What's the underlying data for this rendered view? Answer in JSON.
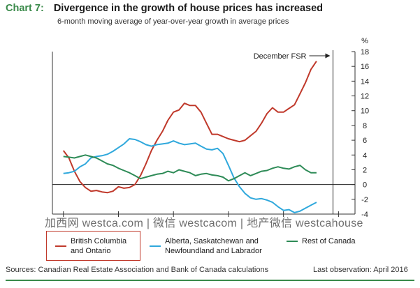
{
  "header": {
    "chart_number": "Chart 7:",
    "title": "Divergence in the growth of house prices has increased",
    "subtitle": "6-month moving average of year-over-year growth in average prices"
  },
  "colors": {
    "accent": "#3a8a4a",
    "british_columbia": "#c0392b",
    "alberta": "#2fa8dc",
    "rest_of_canada": "#2e8b57",
    "legend_border": "#c0392b"
  },
  "footer": {
    "sources": "Sources: Canadian Real Estate Association and Bank of Canada calculations",
    "last_observation": "Last observation: April 2016"
  },
  "watermark": "加西网 westca.com | 微信 westcacom | 地产微信 westcahouse",
  "chart_data": {
    "type": "line",
    "ylabel": "%",
    "ylim": [
      -4,
      18
    ],
    "yticks": [
      -4,
      -2,
      0,
      2,
      4,
      6,
      8,
      10,
      12,
      14,
      16,
      18
    ],
    "xlim": [
      2010.8,
      2016.3
    ],
    "xticks": [
      2011,
      2012,
      2013,
      2014,
      2015,
      2016
    ],
    "annotation": {
      "text": "December FSR",
      "x": 2015.9
    },
    "series": [
      {
        "name": "British Columbia and Ontario",
        "key": "bc",
        "points": [
          [
            2011.0,
            4.6
          ],
          [
            2011.1,
            3.6
          ],
          [
            2011.2,
            1.8
          ],
          [
            2011.3,
            0.4
          ],
          [
            2011.4,
            -0.4
          ],
          [
            2011.5,
            -0.9
          ],
          [
            2011.6,
            -0.8
          ],
          [
            2011.7,
            -1.0
          ],
          [
            2011.8,
            -1.1
          ],
          [
            2011.9,
            -0.9
          ],
          [
            2012.0,
            -0.3
          ],
          [
            2012.1,
            -0.5
          ],
          [
            2012.2,
            -0.4
          ],
          [
            2012.3,
            0.0
          ],
          [
            2012.4,
            1.2
          ],
          [
            2012.5,
            2.8
          ],
          [
            2012.6,
            4.6
          ],
          [
            2012.7,
            6.0
          ],
          [
            2012.8,
            7.2
          ],
          [
            2012.9,
            8.7
          ],
          [
            2013.0,
            9.8
          ],
          [
            2013.1,
            10.1
          ],
          [
            2013.2,
            11.0
          ],
          [
            2013.3,
            10.7
          ],
          [
            2013.4,
            10.7
          ],
          [
            2013.5,
            9.8
          ],
          [
            2013.6,
            8.3
          ],
          [
            2013.7,
            6.8
          ],
          [
            2013.8,
            6.8
          ],
          [
            2013.9,
            6.5
          ],
          [
            2014.0,
            6.2
          ],
          [
            2014.1,
            6.0
          ],
          [
            2014.2,
            5.8
          ],
          [
            2014.3,
            6.0
          ],
          [
            2014.4,
            6.6
          ],
          [
            2014.5,
            7.2
          ],
          [
            2014.6,
            8.3
          ],
          [
            2014.7,
            9.6
          ],
          [
            2014.8,
            10.4
          ],
          [
            2014.9,
            9.8
          ],
          [
            2015.0,
            9.8
          ],
          [
            2015.1,
            10.3
          ],
          [
            2015.2,
            10.8
          ],
          [
            2015.3,
            12.3
          ],
          [
            2015.4,
            13.8
          ],
          [
            2015.5,
            15.6
          ],
          [
            2015.6,
            16.7
          ]
        ]
      },
      {
        "name": "Alberta, Saskatchewan and Newfoundland and Labrador",
        "key": "ab",
        "points": [
          [
            2011.0,
            1.5
          ],
          [
            2011.1,
            1.6
          ],
          [
            2011.2,
            1.8
          ],
          [
            2011.3,
            2.4
          ],
          [
            2011.4,
            2.8
          ],
          [
            2011.5,
            3.6
          ],
          [
            2011.6,
            3.8
          ],
          [
            2011.7,
            3.9
          ],
          [
            2011.8,
            4.1
          ],
          [
            2011.9,
            4.5
          ],
          [
            2012.0,
            5.0
          ],
          [
            2012.1,
            5.5
          ],
          [
            2012.2,
            6.2
          ],
          [
            2012.3,
            6.1
          ],
          [
            2012.4,
            5.8
          ],
          [
            2012.5,
            5.4
          ],
          [
            2012.6,
            5.2
          ],
          [
            2012.7,
            5.4
          ],
          [
            2012.8,
            5.5
          ],
          [
            2012.9,
            5.6
          ],
          [
            2013.0,
            5.9
          ],
          [
            2013.1,
            5.6
          ],
          [
            2013.2,
            5.4
          ],
          [
            2013.3,
            5.5
          ],
          [
            2013.4,
            5.6
          ],
          [
            2013.5,
            5.2
          ],
          [
            2013.6,
            4.8
          ],
          [
            2013.7,
            4.7
          ],
          [
            2013.8,
            4.9
          ],
          [
            2013.9,
            4.2
          ],
          [
            2014.0,
            2.6
          ],
          [
            2014.1,
            0.9
          ],
          [
            2014.2,
            -0.3
          ],
          [
            2014.3,
            -1.2
          ],
          [
            2014.4,
            -1.8
          ],
          [
            2014.5,
            -2.0
          ],
          [
            2014.6,
            -1.9
          ],
          [
            2014.7,
            -2.1
          ],
          [
            2014.8,
            -2.4
          ],
          [
            2014.9,
            -3.0
          ],
          [
            2015.0,
            -3.5
          ],
          [
            2015.1,
            -3.4
          ],
          [
            2015.2,
            -3.8
          ],
          [
            2015.3,
            -3.6
          ],
          [
            2015.4,
            -3.2
          ],
          [
            2015.5,
            -2.8
          ],
          [
            2015.6,
            -2.4
          ]
        ]
      },
      {
        "name": "Rest of Canada",
        "key": "roc",
        "points": [
          [
            2011.0,
            3.8
          ],
          [
            2011.1,
            3.7
          ],
          [
            2011.2,
            3.6
          ],
          [
            2011.3,
            3.8
          ],
          [
            2011.4,
            4.0
          ],
          [
            2011.5,
            3.8
          ],
          [
            2011.6,
            3.6
          ],
          [
            2011.7,
            3.2
          ],
          [
            2011.8,
            2.8
          ],
          [
            2011.9,
            2.6
          ],
          [
            2012.0,
            2.2
          ],
          [
            2012.1,
            1.9
          ],
          [
            2012.2,
            1.6
          ],
          [
            2012.3,
            1.2
          ],
          [
            2012.4,
            0.8
          ],
          [
            2012.5,
            1.0
          ],
          [
            2012.6,
            1.2
          ],
          [
            2012.7,
            1.4
          ],
          [
            2012.8,
            1.5
          ],
          [
            2012.9,
            1.8
          ],
          [
            2013.0,
            1.6
          ],
          [
            2013.1,
            2.0
          ],
          [
            2013.2,
            1.8
          ],
          [
            2013.3,
            1.6
          ],
          [
            2013.4,
            1.2
          ],
          [
            2013.5,
            1.4
          ],
          [
            2013.6,
            1.5
          ],
          [
            2013.7,
            1.3
          ],
          [
            2013.8,
            1.2
          ],
          [
            2013.9,
            1.0
          ],
          [
            2014.0,
            0.5
          ],
          [
            2014.1,
            0.8
          ],
          [
            2014.2,
            1.2
          ],
          [
            2014.3,
            1.6
          ],
          [
            2014.4,
            1.2
          ],
          [
            2014.5,
            1.5
          ],
          [
            2014.6,
            1.8
          ],
          [
            2014.7,
            1.9
          ],
          [
            2014.8,
            2.2
          ],
          [
            2014.9,
            2.4
          ],
          [
            2015.0,
            2.2
          ],
          [
            2015.1,
            2.1
          ],
          [
            2015.2,
            2.4
          ],
          [
            2015.3,
            2.6
          ],
          [
            2015.4,
            2.0
          ],
          [
            2015.5,
            1.6
          ],
          [
            2015.6,
            1.6
          ]
        ]
      }
    ]
  }
}
